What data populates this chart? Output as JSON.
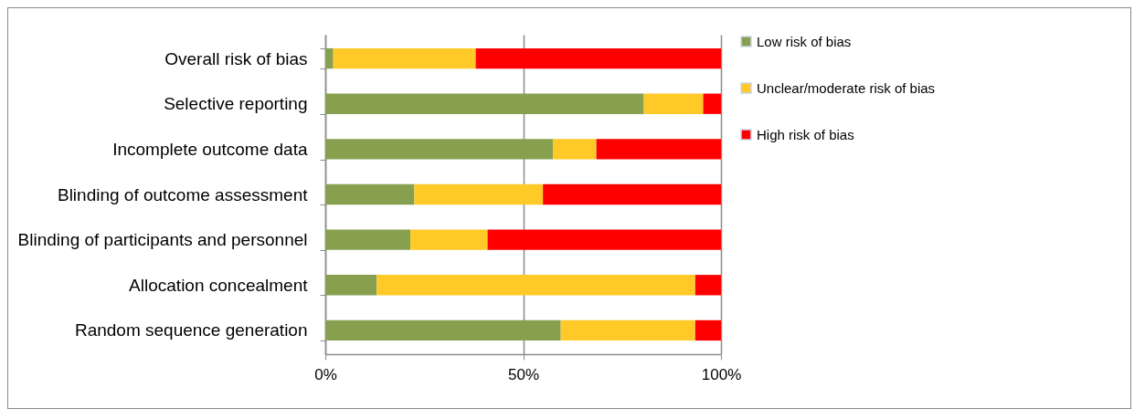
{
  "chart_data": {
    "type": "bar",
    "orientation": "horizontal",
    "stacked": true,
    "categories": [
      "Overall risk of bias",
      "Selective reporting",
      "Incomplete outcome data",
      "Blinding of outcome assessment",
      "Blinding of participants and personnel",
      "Allocation concealment",
      "Random sequence generation"
    ],
    "series": [
      {
        "name": "Low risk of bias",
        "color": "#86a04f",
        "values": [
          2,
          80.5,
          57.5,
          22.5,
          21.5,
          13,
          59.5
        ]
      },
      {
        "name": "Unclear/moderate risk of bias",
        "color": "#ffc928",
        "values": [
          36,
          15,
          11,
          32.5,
          19.5,
          80.5,
          34
        ]
      },
      {
        "name": "High risk of bias",
        "color": "#ff0000",
        "values": [
          62,
          4.5,
          31.5,
          45,
          59,
          6.5,
          6.5
        ]
      }
    ],
    "xlim": [
      0,
      100
    ],
    "xticks": [
      {
        "value": 0,
        "label": "0%"
      },
      {
        "value": 50,
        "label": "50%"
      },
      {
        "value": 100,
        "label": "100%"
      }
    ],
    "grid": "x",
    "legend": "right"
  }
}
